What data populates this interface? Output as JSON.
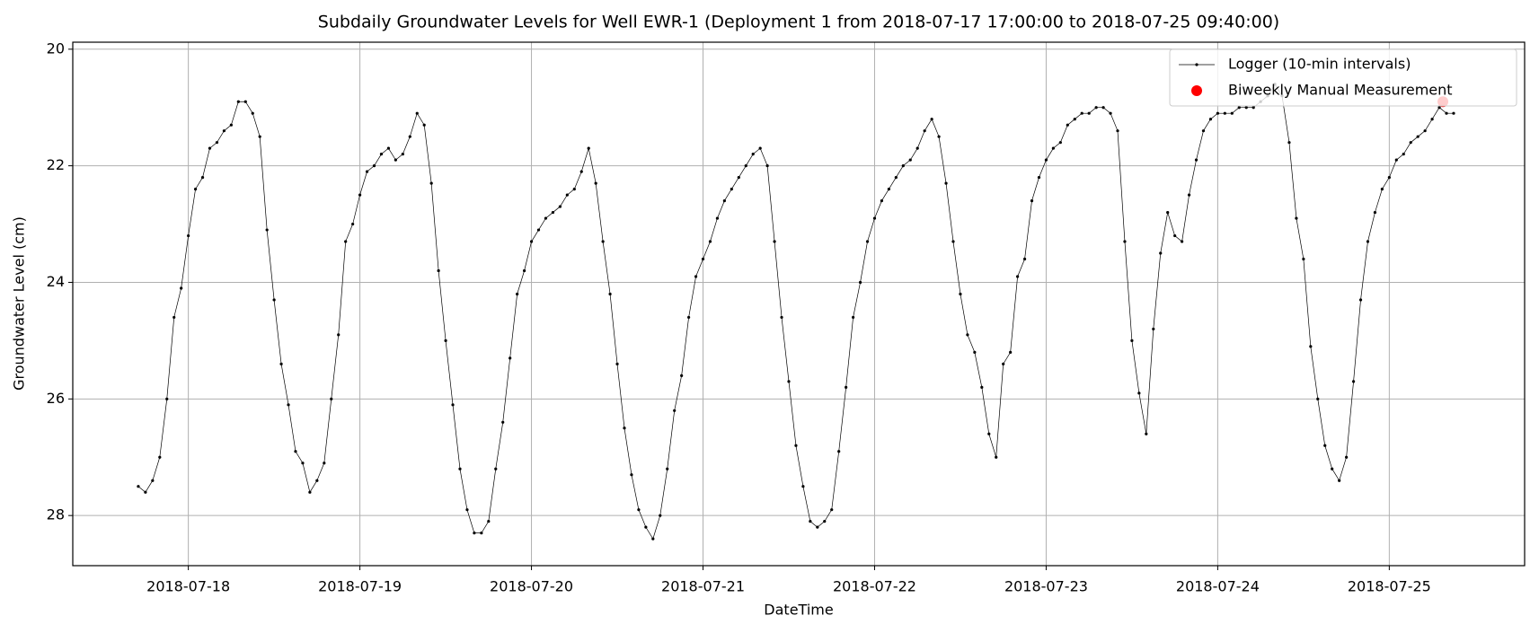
{
  "chart_data": {
    "type": "line",
    "title": "Subdaily Groundwater Levels for Well EWR-1 (Deployment 1 from 2018-07-17 17:00:00 to 2018-07-25 09:40:00)",
    "xlabel": "DateTime",
    "ylabel": "Groundwater Level (cm)",
    "xlim": [
      "2018-07-17 07:50",
      "2018-07-25 18:56"
    ],
    "xticks": [
      "2018-07-18",
      "2018-07-19",
      "2018-07-20",
      "2018-07-21",
      "2018-07-22",
      "2018-07-23",
      "2018-07-24",
      "2018-07-25"
    ],
    "ylim": [
      28.86,
      19.88
    ],
    "yticks": [
      20,
      22,
      24,
      26,
      28
    ],
    "inverted_y": true,
    "grid": true,
    "legend": "upper right",
    "series": [
      {
        "name": "Logger (10-min intervals)",
        "type": "line",
        "color": "#000000",
        "x": [
          "2018-07-17 17:00",
          "2018-07-17 18:00",
          "2018-07-17 19:00",
          "2018-07-17 20:00",
          "2018-07-17 21:00",
          "2018-07-17 22:00",
          "2018-07-17 23:00",
          "2018-07-18 00:00",
          "2018-07-18 01:00",
          "2018-07-18 02:00",
          "2018-07-18 03:00",
          "2018-07-18 04:00",
          "2018-07-18 05:00",
          "2018-07-18 06:00",
          "2018-07-18 07:00",
          "2018-07-18 08:00",
          "2018-07-18 09:00",
          "2018-07-18 10:00",
          "2018-07-18 11:00",
          "2018-07-18 12:00",
          "2018-07-18 13:00",
          "2018-07-18 14:00",
          "2018-07-18 15:00",
          "2018-07-18 16:00",
          "2018-07-18 17:00",
          "2018-07-18 18:00",
          "2018-07-18 19:00",
          "2018-07-18 20:00",
          "2018-07-18 21:00",
          "2018-07-18 22:00",
          "2018-07-18 23:00",
          "2018-07-19 00:00",
          "2018-07-19 01:00",
          "2018-07-19 02:00",
          "2018-07-19 03:00",
          "2018-07-19 04:00",
          "2018-07-19 05:00",
          "2018-07-19 06:00",
          "2018-07-19 07:00",
          "2018-07-19 08:00",
          "2018-07-19 09:00",
          "2018-07-19 10:00",
          "2018-07-19 11:00",
          "2018-07-19 12:00",
          "2018-07-19 13:00",
          "2018-07-19 14:00",
          "2018-07-19 15:00",
          "2018-07-19 16:00",
          "2018-07-19 17:00",
          "2018-07-19 18:00",
          "2018-07-19 19:00",
          "2018-07-19 20:00",
          "2018-07-19 21:00",
          "2018-07-19 22:00",
          "2018-07-19 23:00",
          "2018-07-20 00:00",
          "2018-07-20 01:00",
          "2018-07-20 02:00",
          "2018-07-20 03:00",
          "2018-07-20 04:00",
          "2018-07-20 05:00",
          "2018-07-20 06:00",
          "2018-07-20 07:00",
          "2018-07-20 08:00",
          "2018-07-20 09:00",
          "2018-07-20 10:00",
          "2018-07-20 11:00",
          "2018-07-20 12:00",
          "2018-07-20 13:00",
          "2018-07-20 14:00",
          "2018-07-20 15:00",
          "2018-07-20 16:00",
          "2018-07-20 17:00",
          "2018-07-20 18:00",
          "2018-07-20 19:00",
          "2018-07-20 20:00",
          "2018-07-20 21:00",
          "2018-07-20 22:00",
          "2018-07-20 23:00",
          "2018-07-21 00:00",
          "2018-07-21 01:00",
          "2018-07-21 02:00",
          "2018-07-21 03:00",
          "2018-07-21 04:00",
          "2018-07-21 05:00",
          "2018-07-21 06:00",
          "2018-07-21 07:00",
          "2018-07-21 08:00",
          "2018-07-21 09:00",
          "2018-07-21 10:00",
          "2018-07-21 11:00",
          "2018-07-21 12:00",
          "2018-07-21 13:00",
          "2018-07-21 14:00",
          "2018-07-21 15:00",
          "2018-07-21 16:00",
          "2018-07-21 17:00",
          "2018-07-21 18:00",
          "2018-07-21 19:00",
          "2018-07-21 20:00",
          "2018-07-21 21:00",
          "2018-07-21 22:00",
          "2018-07-21 23:00",
          "2018-07-22 00:00",
          "2018-07-22 01:00",
          "2018-07-22 02:00",
          "2018-07-22 03:00",
          "2018-07-22 04:00",
          "2018-07-22 05:00",
          "2018-07-22 06:00",
          "2018-07-22 07:00",
          "2018-07-22 08:00",
          "2018-07-22 09:00",
          "2018-07-22 10:00",
          "2018-07-22 11:00",
          "2018-07-22 12:00",
          "2018-07-22 13:00",
          "2018-07-22 14:00",
          "2018-07-22 15:00",
          "2018-07-22 16:00",
          "2018-07-22 17:00",
          "2018-07-22 18:00",
          "2018-07-22 19:00",
          "2018-07-22 20:00",
          "2018-07-22 21:00",
          "2018-07-22 22:00",
          "2018-07-22 23:00",
          "2018-07-23 00:00",
          "2018-07-23 01:00",
          "2018-07-23 02:00",
          "2018-07-23 03:00",
          "2018-07-23 04:00",
          "2018-07-23 05:00",
          "2018-07-23 06:00",
          "2018-07-23 07:00",
          "2018-07-23 08:00",
          "2018-07-23 09:00",
          "2018-07-23 10:00",
          "2018-07-23 11:00",
          "2018-07-23 12:00",
          "2018-07-23 13:00",
          "2018-07-23 14:00",
          "2018-07-23 15:00",
          "2018-07-23 16:00",
          "2018-07-23 17:00",
          "2018-07-23 18:00",
          "2018-07-23 19:00",
          "2018-07-23 20:00",
          "2018-07-23 21:00",
          "2018-07-23 22:00",
          "2018-07-23 23:00",
          "2018-07-24 00:00",
          "2018-07-24 01:00",
          "2018-07-24 02:00",
          "2018-07-24 03:00",
          "2018-07-24 04:00",
          "2018-07-24 05:00",
          "2018-07-24 06:00",
          "2018-07-24 07:00",
          "2018-07-24 08:00",
          "2018-07-24 09:00",
          "2018-07-24 10:00",
          "2018-07-24 11:00",
          "2018-07-24 12:00",
          "2018-07-24 13:00",
          "2018-07-24 14:00",
          "2018-07-24 15:00",
          "2018-07-24 16:00",
          "2018-07-24 17:00",
          "2018-07-24 18:00",
          "2018-07-24 19:00",
          "2018-07-24 20:00",
          "2018-07-24 21:00",
          "2018-07-24 22:00",
          "2018-07-24 23:00",
          "2018-07-25 00:00",
          "2018-07-25 01:00",
          "2018-07-25 02:00",
          "2018-07-25 03:00",
          "2018-07-25 04:00",
          "2018-07-25 05:00",
          "2018-07-25 06:00",
          "2018-07-25 07:00",
          "2018-07-25 08:00",
          "2018-07-25 09:00"
        ],
        "values": [
          27.5,
          27.6,
          27.4,
          27.0,
          26.0,
          24.6,
          24.1,
          23.2,
          22.4,
          22.2,
          21.7,
          21.6,
          21.4,
          21.3,
          20.9,
          20.9,
          21.1,
          21.5,
          23.1,
          24.3,
          25.4,
          26.1,
          26.9,
          27.1,
          27.6,
          27.4,
          27.1,
          26.0,
          24.9,
          23.3,
          23.0,
          22.5,
          22.1,
          22.0,
          21.8,
          21.7,
          21.9,
          21.8,
          21.5,
          21.1,
          21.3,
          22.3,
          23.8,
          25.0,
          26.1,
          27.2,
          27.9,
          28.3,
          28.3,
          28.1,
          27.2,
          26.4,
          25.3,
          24.2,
          23.8,
          23.3,
          23.1,
          22.9,
          22.8,
          22.7,
          22.5,
          22.4,
          22.1,
          21.7,
          22.3,
          23.3,
          24.2,
          25.4,
          26.5,
          27.3,
          27.9,
          28.2,
          28.4,
          28.0,
          27.2,
          26.2,
          25.6,
          24.6,
          23.9,
          23.6,
          23.3,
          22.9,
          22.6,
          22.4,
          22.2,
          22.0,
          21.8,
          21.7,
          22.0,
          23.3,
          24.6,
          25.7,
          26.8,
          27.5,
          28.1,
          28.2,
          28.1,
          27.9,
          26.9,
          25.8,
          24.6,
          24.0,
          23.3,
          22.9,
          22.6,
          22.4,
          22.2,
          22.0,
          21.9,
          21.7,
          21.4,
          21.2,
          21.5,
          22.3,
          23.3,
          24.2,
          24.9,
          25.2,
          25.8,
          26.6,
          27.0,
          25.4,
          25.2,
          23.9,
          23.6,
          22.6,
          22.2,
          21.9,
          21.7,
          21.6,
          21.3,
          21.2,
          21.1,
          21.1,
          21.0,
          21.0,
          21.1,
          21.4,
          23.3,
          25.0,
          25.9,
          26.6,
          24.8,
          23.5,
          22.8,
          23.2,
          23.3,
          22.5,
          21.9,
          21.4,
          21.2,
          21.1,
          21.1,
          21.1,
          21.0,
          21.0,
          21.0,
          20.9,
          20.8,
          20.6,
          20.8,
          21.6,
          22.9,
          23.6,
          25.1,
          26.0,
          26.8,
          27.2,
          27.4,
          27.0,
          25.7,
          24.3,
          23.3,
          22.8,
          22.4,
          22.2,
          21.9,
          21.8,
          21.6,
          21.5,
          21.4,
          21.2,
          21.0,
          21.1,
          21.1
        ]
      },
      {
        "name": "Biweekly Manual Measurement",
        "type": "scatter",
        "color": "#ff0000",
        "x": [
          "2018-07-25 07:30"
        ],
        "values": [
          20.9
        ]
      }
    ]
  }
}
